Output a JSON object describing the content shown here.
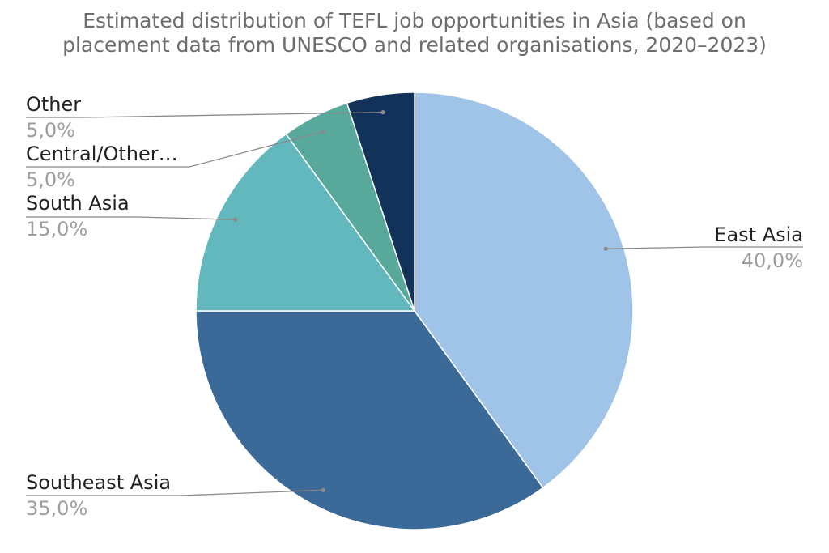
{
  "chart_data": {
    "type": "pie",
    "title_lines": [
      "Estimated distribution of TEFL job opportunities in Asia (based on",
      "placement data from UNESCO and related organisations, 2020–2023)"
    ],
    "slices": [
      {
        "label": "East Asia",
        "value": 40.0,
        "value_label": "40,0%",
        "color": "#a0c4e8"
      },
      {
        "label": "Southeast Asia",
        "value": 35.0,
        "value_label": "35,0%",
        "color": "#3c6a98"
      },
      {
        "label": "South Asia",
        "value": 15.0,
        "value_label": "15,0%",
        "color": "#62b8bc"
      },
      {
        "label": "Central/Other…",
        "value": 5.0,
        "value_label": "5,0%",
        "color": "#58a89c"
      },
      {
        "label": "Other",
        "value": 5.0,
        "value_label": "5,0%",
        "color": "#12325a"
      }
    ],
    "start_angle_deg": 0,
    "direction": "clockwise",
    "legend": "none"
  }
}
